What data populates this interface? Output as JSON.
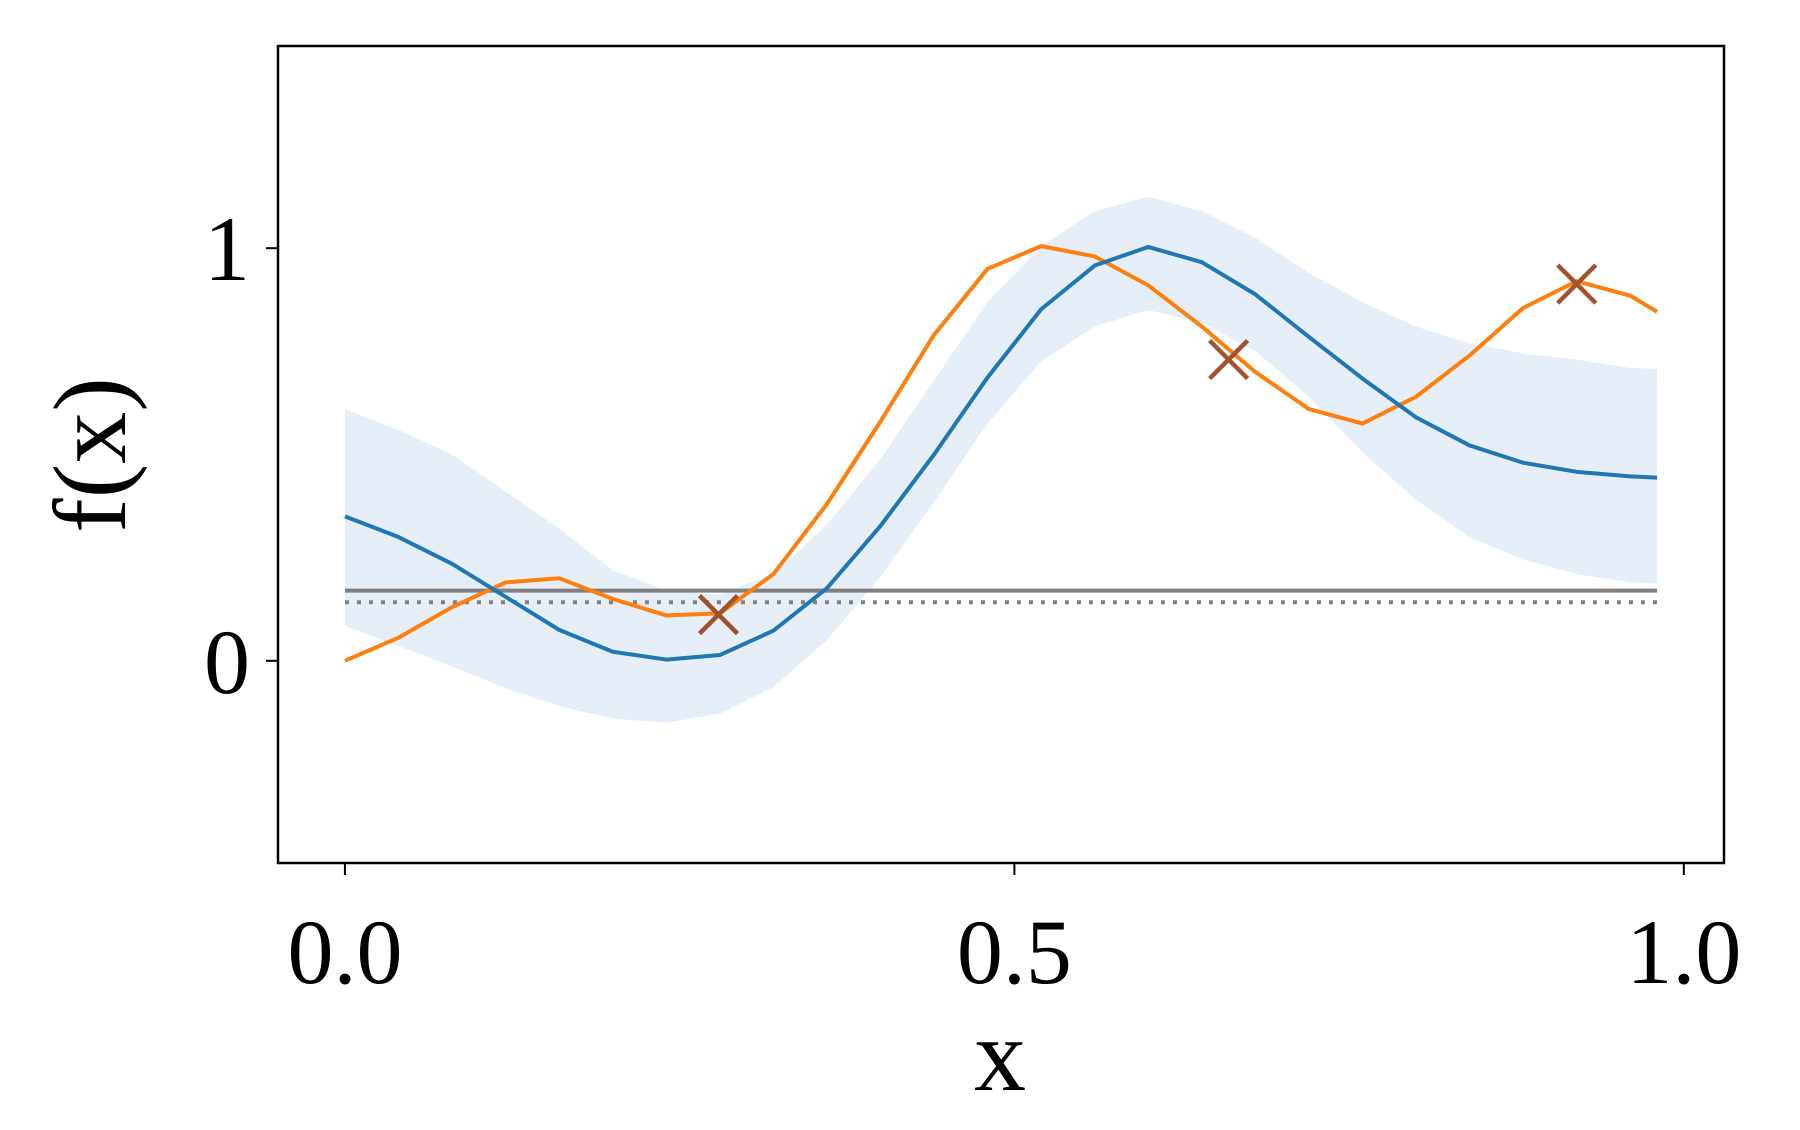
{
  "chart_data": {
    "type": "line",
    "xlabel": "x",
    "ylabel": "f(x)",
    "x": [
      0,
      0.04,
      0.08,
      0.12,
      0.16,
      0.2,
      0.24,
      0.28,
      0.32,
      0.36,
      0.4,
      0.44,
      0.48,
      0.52,
      0.56,
      0.6,
      0.64,
      0.68,
      0.72,
      0.76,
      0.8,
      0.84,
      0.88,
      0.92,
      0.96,
      0.98
    ],
    "series": [
      {
        "color": "#ff7f0e",
        "values": [
          0,
          0.056,
          0.13,
          0.19,
          0.2,
          0.15,
          0.11,
          0.115,
          0.21,
          0.38,
          0.58,
          0.79,
          0.95,
          1.005,
          0.98,
          0.91,
          0.81,
          0.7,
          0.61,
          0.575,
          0.64,
          0.74,
          0.855,
          0.92,
          0.885,
          0.846
        ]
      },
      {
        "color": "#1f77b4",
        "values": [
          0.35,
          0.3,
          0.235,
          0.155,
          0.075,
          0.022,
          0.003,
          0.014,
          0.073,
          0.176,
          0.327,
          0.5,
          0.687,
          0.852,
          0.958,
          1.003,
          0.966,
          0.888,
          0.785,
          0.684,
          0.59,
          0.522,
          0.48,
          0.458,
          0.447,
          0.444
        ]
      }
    ],
    "band": {
      "color": "#e6eff8",
      "upper": [
        0.61,
        0.56,
        0.5,
        0.41,
        0.32,
        0.22,
        0.17,
        0.16,
        0.21,
        0.33,
        0.49,
        0.68,
        0.87,
        1.005,
        1.09,
        1.125,
        1.09,
        1.025,
        0.94,
        0.87,
        0.81,
        0.77,
        0.745,
        0.73,
        0.71,
        0.707
      ],
      "lower": [
        0.084,
        0.036,
        -0.014,
        -0.067,
        -0.11,
        -0.14,
        -0.15,
        -0.128,
        -0.064,
        0.05,
        0.204,
        0.385,
        0.575,
        0.726,
        0.81,
        0.85,
        0.82,
        0.75,
        0.64,
        0.505,
        0.39,
        0.3,
        0.245,
        0.21,
        0.19,
        0.187
      ]
    },
    "hlines": [
      {
        "value": 0.17,
        "color": "#808080",
        "style": "solid"
      },
      {
        "value": 0.142,
        "color": "#808080",
        "style": "dotted"
      }
    ],
    "points": {
      "x": [
        0.279,
        0.66,
        0.92
      ],
      "y": [
        0.112,
        0.73,
        0.913
      ],
      "color": "#a0522d",
      "marker": "x"
    },
    "xlim": [
      -0.05,
      1.03
    ],
    "ylim": [
      -0.49,
      1.49
    ],
    "xticks": [
      {
        "value": 0,
        "label": "0.0"
      },
      {
        "value": 0.5,
        "label": "0.5"
      },
      {
        "value": 1,
        "label": "1.0"
      }
    ],
    "yticks": [
      0,
      1
    ]
  }
}
